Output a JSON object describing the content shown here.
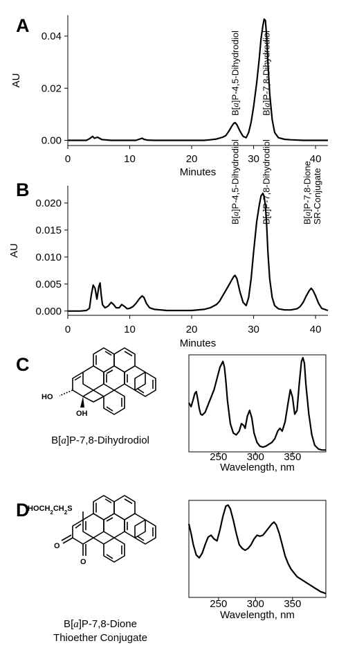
{
  "panels": [
    {
      "letter": "A"
    },
    {
      "letter": "B"
    },
    {
      "letter": "C"
    },
    {
      "letter": "D"
    }
  ],
  "molecules": {
    "c": {
      "caption": [
        "B[a]P-7,8-Dihydrodiol"
      ],
      "atoms": [
        "HO",
        "OH"
      ]
    },
    "d": {
      "caption": [
        "B[a]P-7,8-Dione",
        "Thioether Conjugate"
      ],
      "atoms": [
        "HOCH2CH2S",
        "O",
        "O"
      ]
    }
  },
  "chart_data": [
    {
      "type": "line",
      "panel": "A",
      "xlabel": "Minutes",
      "ylabel": "AU",
      "xlim": [
        0,
        42
      ],
      "ylim": [
        -0.002,
        0.048
      ],
      "xticks": [
        0,
        10,
        20,
        30,
        40
      ],
      "yticks": [
        0.0,
        0.02,
        0.04
      ],
      "ytick_labels": [
        "0.00",
        "0.02",
        "0.04"
      ],
      "grid": false,
      "series": [
        {
          "x": [
            0,
            1,
            2,
            3,
            3.5,
            4,
            4.3,
            4.8,
            5.5,
            7,
            9,
            11,
            12,
            12.3,
            12.8,
            14,
            16,
            18,
            20,
            22,
            23,
            24,
            25,
            25.5,
            26,
            26.5,
            26.8,
            27,
            27.3,
            27.8,
            28.3,
            28.8,
            29.2,
            29.6,
            30,
            30.5,
            30.9,
            31.2,
            31.5,
            31.7,
            31.9,
            32.1,
            32.3,
            32.6,
            33,
            33.4,
            34,
            35,
            36,
            38,
            40,
            42
          ],
          "y": [
            0,
            0,
            0,
            0,
            0.0006,
            0.0015,
            0.0008,
            0.0012,
            0.0003,
            0,
            0,
            0,
            0.0008,
            0.0004,
            0.0001,
            0,
            0,
            0,
            0,
            0,
            0.0002,
            0.0005,
            0.0012,
            0.0018,
            0.0035,
            0.0055,
            0.0065,
            0.0068,
            0.006,
            0.0035,
            0.0015,
            0.001,
            0.003,
            0.007,
            0.013,
            0.022,
            0.031,
            0.039,
            0.044,
            0.0465,
            0.046,
            0.04,
            0.03,
            0.018,
            0.008,
            0.003,
            0.001,
            0.0004,
            0.0002,
            0,
            0,
            0
          ]
        }
      ],
      "annotations": [
        {
          "text": "B[a]P-4,5-Dihydrodiol",
          "x": 27
        },
        {
          "text": "B[a]P-7,8-Dihydrodiol",
          "x": 32
        }
      ]
    },
    {
      "type": "line",
      "panel": "B",
      "xlabel": "Minutes",
      "ylabel": "AU",
      "xlim": [
        0,
        42
      ],
      "ylim": [
        -0.0008,
        0.0232
      ],
      "xticks": [
        0,
        10,
        20,
        30,
        40
      ],
      "yticks": [
        0.0,
        0.005,
        0.01,
        0.015,
        0.02
      ],
      "ytick_labels": [
        "0.000",
        "0.005",
        "0.010",
        "0.015",
        "0.020"
      ],
      "grid": false,
      "series": [
        {
          "x": [
            0,
            2,
            3,
            3.5,
            3.8,
            4.1,
            4.4,
            4.7,
            5,
            5.2,
            5.4,
            5.6,
            6,
            6.5,
            7,
            7.4,
            7.8,
            8.3,
            8.7,
            9.2,
            9.6,
            10,
            10.5,
            11,
            11.5,
            12,
            12.3,
            12.7,
            13.2,
            14,
            15,
            16,
            18,
            20,
            22,
            23,
            24,
            24.5,
            25,
            25.5,
            26,
            26.5,
            26.8,
            27,
            27.3,
            27.8,
            28.3,
            28.8,
            29.2,
            29.6,
            30,
            30.5,
            30.9,
            31.2,
            31.5,
            31.7,
            31.9,
            32.1,
            32.3,
            32.6,
            33,
            33.4,
            34,
            35,
            36,
            37,
            37.5,
            38,
            38.5,
            39,
            39.3,
            39.6,
            40,
            40.5,
            41,
            42
          ],
          "y": [
            0,
            0,
            0.0001,
            0.0005,
            0.003,
            0.0048,
            0.0042,
            0.0022,
            0.0045,
            0.0052,
            0.003,
            0.0012,
            0.0006,
            0.0009,
            0.0016,
            0.0012,
            0.0006,
            0.0006,
            0.0012,
            0.0008,
            0.0004,
            0.0005,
            0.0008,
            0.0014,
            0.0022,
            0.0028,
            0.0025,
            0.0014,
            0.0006,
            0.0003,
            0.0002,
            0.0001,
            0.0001,
            0.0001,
            0.0003,
            0.0006,
            0.0012,
            0.0018,
            0.0028,
            0.0038,
            0.0048,
            0.0058,
            0.0064,
            0.0066,
            0.006,
            0.0035,
            0.0016,
            0.001,
            0.0025,
            0.006,
            0.011,
            0.0165,
            0.0195,
            0.0213,
            0.0218,
            0.0212,
            0.0195,
            0.016,
            0.011,
            0.006,
            0.0025,
            0.001,
            0.0004,
            0.0002,
            0.0002,
            0.0004,
            0.0008,
            0.0016,
            0.0028,
            0.0038,
            0.0042,
            0.0038,
            0.0028,
            0.0014,
            0.0005,
            0.0001
          ]
        }
      ],
      "annotations": [
        {
          "text": "B[a]P-4,5-Dihydrodiol",
          "x": 27
        },
        {
          "text": "B[a]P-7,8-Dihydrodiol",
          "x": 32
        },
        {
          "text": "B[a]P-7,8-Dione",
          "x": 38.6
        },
        {
          "text": "SR-Conjugate",
          "x": 40.2
        }
      ]
    },
    {
      "type": "line",
      "panel": "C",
      "xlabel": "Wavelength, nm",
      "ylabel": "",
      "xlim": [
        210,
        395
      ],
      "ylim": [
        0,
        1.03
      ],
      "xticks": [
        250,
        300,
        350
      ],
      "yticks": [],
      "grid": false,
      "series": [
        {
          "x": [
            210,
            213,
            216,
            218,
            220,
            222,
            224,
            226,
            228,
            232,
            236,
            240,
            244,
            248,
            252,
            256,
            258,
            260,
            262,
            266,
            270,
            274,
            278,
            281,
            284,
            286,
            289,
            292,
            295,
            298,
            302,
            306,
            310,
            314,
            318,
            322,
            326,
            330,
            333,
            336,
            340,
            344,
            347,
            350,
            353,
            356,
            359,
            362,
            364,
            366,
            368,
            372,
            376,
            380,
            385,
            390,
            395
          ],
          "y": [
            0.52,
            0.48,
            0.56,
            0.62,
            0.64,
            0.56,
            0.46,
            0.4,
            0.39,
            0.42,
            0.5,
            0.58,
            0.66,
            0.78,
            0.9,
            0.96,
            0.9,
            0.75,
            0.55,
            0.3,
            0.2,
            0.18,
            0.22,
            0.3,
            0.28,
            0.25,
            0.38,
            0.44,
            0.36,
            0.2,
            0.1,
            0.06,
            0.05,
            0.06,
            0.08,
            0.1,
            0.14,
            0.22,
            0.25,
            0.22,
            0.32,
            0.52,
            0.66,
            0.58,
            0.4,
            0.44,
            0.72,
            0.96,
            1.0,
            0.94,
            0.72,
            0.4,
            0.18,
            0.07,
            0.03,
            0.02,
            0.02
          ]
        }
      ]
    },
    {
      "type": "line",
      "panel": "D",
      "xlabel": "Wavelength, nm",
      "ylabel": "",
      "xlim": [
        210,
        395
      ],
      "ylim": [
        0,
        1.03
      ],
      "xticks": [
        250,
        300,
        350
      ],
      "yticks": [],
      "grid": false,
      "series": [
        {
          "x": [
            210,
            213,
            216,
            220,
            224,
            228,
            232,
            236,
            240,
            244,
            248,
            252,
            256,
            260,
            263,
            266,
            270,
            274,
            278,
            282,
            286,
            290,
            294,
            298,
            302,
            306,
            310,
            314,
            318,
            322,
            325,
            328,
            332,
            336,
            340,
            344,
            348,
            352,
            356,
            360,
            364,
            368,
            372,
            376,
            380,
            384,
            388,
            392,
            395
          ],
          "y": [
            0.78,
            0.68,
            0.56,
            0.45,
            0.42,
            0.47,
            0.56,
            0.64,
            0.66,
            0.62,
            0.6,
            0.72,
            0.86,
            0.97,
            0.98,
            0.94,
            0.82,
            0.68,
            0.56,
            0.52,
            0.5,
            0.52,
            0.56,
            0.62,
            0.66,
            0.65,
            0.66,
            0.7,
            0.74,
            0.78,
            0.8,
            0.77,
            0.68,
            0.56,
            0.44,
            0.36,
            0.3,
            0.26,
            0.22,
            0.2,
            0.18,
            0.16,
            0.14,
            0.12,
            0.1,
            0.08,
            0.06,
            0.05,
            0.04
          ]
        }
      ]
    }
  ]
}
